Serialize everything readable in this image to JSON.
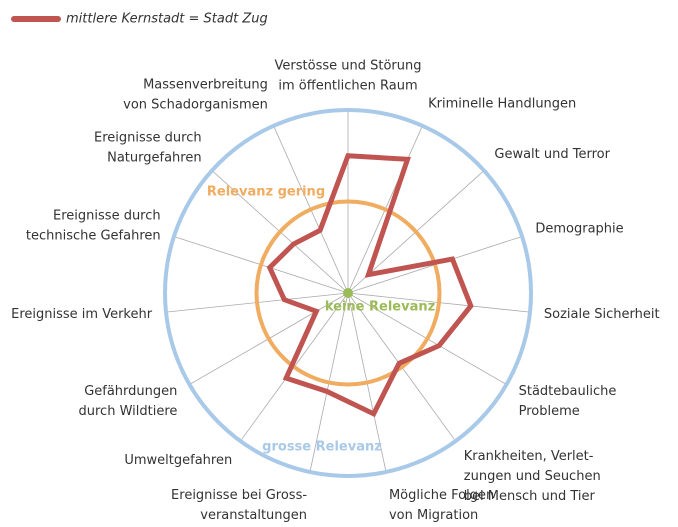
{
  "chart_data": {
    "type": "radar",
    "categories": [
      [
        "Verstösse und Störung",
        "im öffentlichen Raum"
      ],
      [
        "Kriminelle Handlungen"
      ],
      [
        "Gewalt und Terror"
      ],
      [
        "Demographie"
      ],
      [
        "Soziale Sicherheit"
      ],
      [
        "Städtebauliche",
        "Probleme"
      ],
      [
        "Krankheiten, Verlet-",
        "zungen und Seuchen",
        "bei Mensch und Tier"
      ],
      [
        "Mögliche Folgen",
        "von Migration"
      ],
      [
        "Ereignisse bei Gross-",
        "veranstaltungen"
      ],
      [
        "Umweltgefahren"
      ],
      [
        "Gefährdungen",
        "durch Wildtiere"
      ],
      [
        "Ereignisse im Verkehr"
      ],
      [
        "Ereignisse durch",
        "technische Gefahren"
      ],
      [
        "Ereignisse durch",
        "Naturgefahren"
      ],
      [
        "Massenverbreitung",
        "von Schadorganismen"
      ]
    ],
    "series": [
      {
        "name": "mittlere Kernstadt = Stadt Zug",
        "color": "#bf5450",
        "values": [
          1.5,
          1.6,
          0.3,
          1.2,
          1.35,
          1.15,
          0.95,
          1.35,
          1.1,
          1.15,
          0.4,
          0.7,
          0.9,
          0.8,
          0.75
        ]
      }
    ],
    "ylim": [
      0,
      2
    ],
    "yticks": [
      {
        "value": 0,
        "label": "keine Relevanz"
      },
      {
        "value": 1,
        "label": "Relevanz gering"
      },
      {
        "value": 2,
        "label": "grosse Relevanz"
      }
    ],
    "tick_colors": [
      "#9bbb59",
      "#f0ac60",
      "#a9c9e8"
    ],
    "legend": "top-left"
  }
}
